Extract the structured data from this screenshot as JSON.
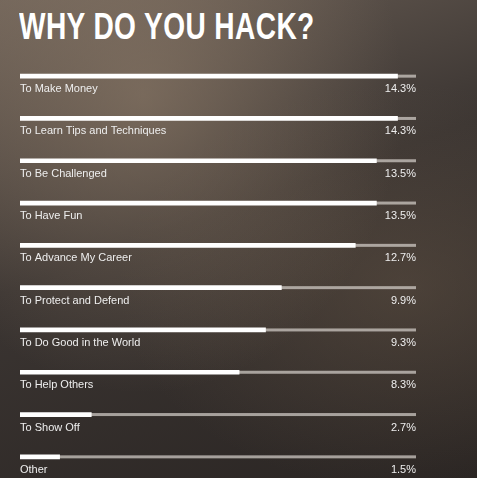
{
  "chart_data": {
    "type": "bar",
    "title": "WHY DO YOU HACK?",
    "orientation": "horizontal",
    "categories": [
      "To Make Money",
      "To Learn Tips and Techniques",
      "To Be Challenged",
      "To Have Fun",
      "To Advance My Career",
      "To Protect and Defend",
      "To Do Good in the World",
      "To Help Others",
      "To Show Off",
      "Other"
    ],
    "values": [
      14.3,
      14.3,
      13.5,
      13.5,
      12.7,
      9.9,
      9.3,
      8.3,
      2.7,
      1.5
    ],
    "value_labels": [
      "14.3%",
      "14.3%",
      "13.5%",
      "13.5%",
      "12.7%",
      "9.9%",
      "9.3%",
      "8.3%",
      "2.7%",
      "1.5%"
    ],
    "color": "#ffffff",
    "xlim": [
      0,
      15
    ],
    "data_labels": true,
    "tick_labels": false,
    "grid": false
  }
}
